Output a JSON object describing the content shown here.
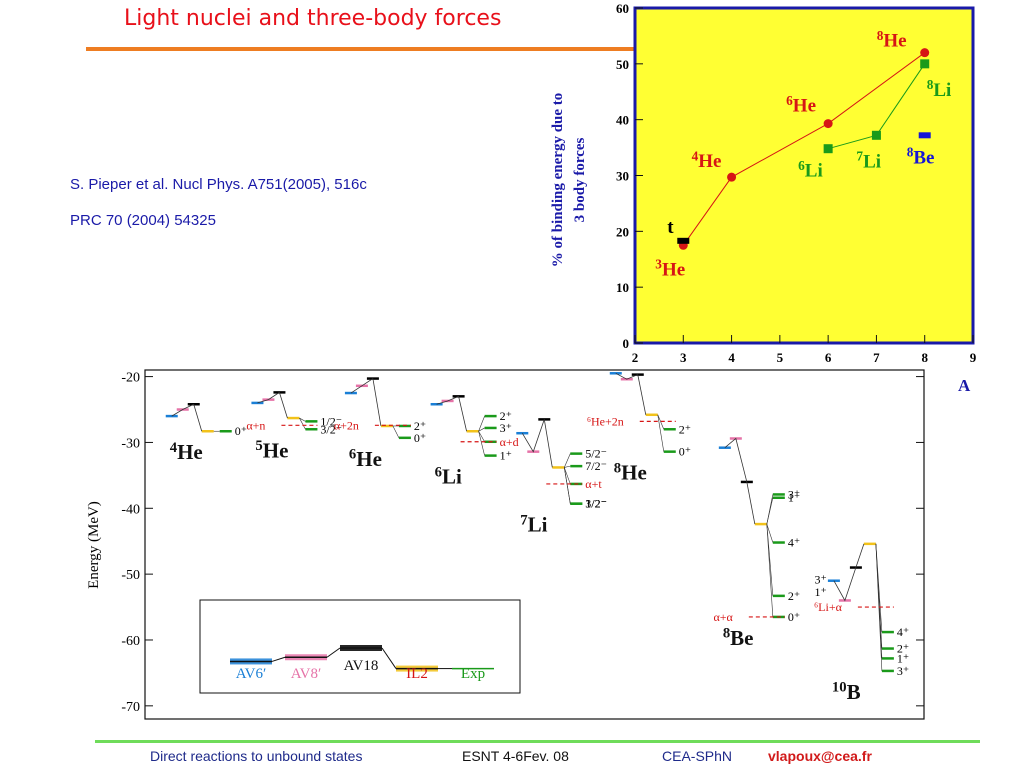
{
  "title": "Light nuclei and three-body forces",
  "references": [
    "S. Pieper et al. Nucl Phys. A751(2005), 516c",
    "PRC 70 (2004) 54325"
  ],
  "footer": {
    "talk": "Direct reactions to unbound states",
    "event": "ESNT 4-6Fev. 08",
    "lab": "CEA-SPhN",
    "email": "vlapoux@cea.fr"
  },
  "colors": {
    "title": "#e8101a",
    "rule": "#ee7d22",
    "plot_bg": "#ffff33",
    "frame": "#1a1aa8",
    "he": "#d61515",
    "li": "#1a9a1a",
    "be": "#1515d6",
    "t": "#000000"
  },
  "chart_data": [
    {
      "type": "scatter",
      "ylabel_lines": [
        "% of binding energy due to",
        "3 body forces"
      ],
      "xlabel": "A",
      "xlim": [
        2,
        9
      ],
      "ylim": [
        0,
        60
      ],
      "xticks": [
        "2",
        "3",
        "4",
        "5",
        "6",
        "7",
        "8",
        "9"
      ],
      "yticks": [
        "0",
        "10",
        "20",
        "30",
        "40",
        "50",
        "60"
      ],
      "series": [
        {
          "name": "He",
          "color": "#d61515",
          "marker": "circle",
          "points": [
            {
              "x": 3,
              "y": 17.5,
              "label": "He",
              "sup": "3"
            },
            {
              "x": 4,
              "y": 29.7,
              "label": "He",
              "sup": "4"
            },
            {
              "x": 6,
              "y": 39.3,
              "label": "He",
              "sup": "6"
            },
            {
              "x": 8,
              "y": 52,
              "label": "He",
              "sup": "8"
            }
          ]
        },
        {
          "name": "Li",
          "color": "#1a9a1a",
          "marker": "square",
          "points": [
            {
              "x": 6,
              "y": 34.8,
              "label": "Li",
              "sup": "6"
            },
            {
              "x": 7,
              "y": 37.2,
              "label": "Li",
              "sup": "7"
            },
            {
              "x": 8,
              "y": 50,
              "label": "Li",
              "sup": "8"
            }
          ]
        },
        {
          "name": "t",
          "color": "#000000",
          "marker": "bar",
          "points": [
            {
              "x": 3,
              "y": 18.3,
              "label": "t",
              "sup": ""
            }
          ]
        },
        {
          "name": "Be",
          "color": "#1515d6",
          "marker": "bar",
          "points": [
            {
              "x": 8,
              "y": 37.2,
              "label": "Be",
              "sup": "8"
            }
          ]
        }
      ]
    },
    {
      "type": "level-scheme",
      "ylabel": "Energy (MeV)",
      "ylim": [
        -72,
        -19
      ],
      "yticks": [
        "-20",
        "-30",
        "-40",
        "-50",
        "-60",
        "-70"
      ],
      "legend": [
        {
          "label": "AV6′",
          "color": "#1a7fd6",
          "energy": -60.4
        },
        {
          "label": "AV8′",
          "color": "#e673a8",
          "energy": -59.4
        },
        {
          "label": "AV18",
          "color": "#000000",
          "energy": -57.2
        },
        {
          "label": "IL2",
          "color": "#f2c21a",
          "energy": -62.1
        },
        {
          "label": "Exp",
          "color": "#1a9a1a",
          "energy": -62.1
        }
      ],
      "nuclei": [
        {
          "name": "He",
          "sup": "4",
          "x": 0.06,
          "levels": [
            -26,
            -25,
            -24.2,
            -28.3
          ],
          "exp": [
            {
              "e": -28.3,
              "jp": "0⁺"
            }
          ],
          "thresholds": []
        },
        {
          "name": "He",
          "sup": "5",
          "x": 0.17,
          "levels": [
            -24,
            -23.5,
            -22.4,
            -26.3
          ],
          "exp": [
            {
              "e": -26.8,
              "jp": "1/2⁻"
            },
            {
              "e": -28,
              "jp": "3/2⁻"
            }
          ],
          "thresholds": [
            {
              "e": -27.4,
              "label": "α+n"
            }
          ]
        },
        {
          "name": "He",
          "sup": "6",
          "x": 0.29,
          "levels": [
            -22.5,
            -21.4,
            -20.3,
            -27.5
          ],
          "exp": [
            {
              "e": -27.5,
              "jp": "2⁺"
            },
            {
              "e": -29.3,
              "jp": "0⁺"
            }
          ],
          "thresholds": [
            {
              "e": -27.4,
              "label": "α+2n"
            }
          ]
        },
        {
          "name": "Li",
          "sup": "6",
          "x": 0.4,
          "levels": [
            -24.2,
            -23.7,
            -23,
            -28.3
          ],
          "exp": [
            {
              "e": -26,
              "jp": "2⁺"
            },
            {
              "e": -27.8,
              "jp": "3⁺"
            },
            {
              "e": -29.9,
              "jp": "α+d"
            },
            {
              "e": -32,
              "jp": "1⁺"
            }
          ],
          "thresholds": [
            {
              "e": -29.9,
              "label": "α+d"
            }
          ]
        },
        {
          "name": "Li",
          "sup": "7",
          "x": 0.51,
          "levels": [
            -28.6,
            -31.4,
            -26.5,
            -33.8
          ],
          "exp": [
            {
              "e": -31.7,
              "jp": "5/2⁻"
            },
            {
              "e": -33.6,
              "jp": "7/2⁻"
            },
            {
              "e": -36.3,
              "jp": "α+t"
            },
            {
              "e": -39.3,
              "jp": "1/2⁻"
            },
            {
              "e": -39.3,
              "jp": "3/2⁻"
            }
          ],
          "thresholds": [
            {
              "e": -36.3,
              "label": "α+t"
            }
          ]
        },
        {
          "name": "He",
          "sup": "8",
          "x": 0.63,
          "levels": [
            -19.5,
            -20.4,
            -19.7,
            -25.8
          ],
          "exp": [
            {
              "e": -28,
              "jp": "2⁺"
            },
            {
              "e": -31.4,
              "jp": "0⁺"
            }
          ],
          "thresholds": [
            {
              "e": -26.8,
              "label": "⁶He+2n"
            }
          ]
        },
        {
          "name": "Be",
          "sup": "8",
          "x": 0.77,
          "levels": [
            -30.8,
            -29.4,
            -36,
            -42.4
          ],
          "exp": [
            {
              "e": -37.9,
              "jp": "3⁺"
            },
            {
              "e": -38.4,
              "jp": "1⁺"
            },
            {
              "e": -45.2,
              "jp": "4⁺"
            },
            {
              "e": -53.3,
              "jp": "2⁺"
            },
            {
              "e": -56.5,
              "jp": "0⁺"
            }
          ],
          "thresholds": [
            {
              "e": -56.5,
              "label": "α+α"
            }
          ]
        },
        {
          "name": "B",
          "sup": "10",
          "x": 0.91,
          "levels": [
            -51,
            -54,
            -49,
            -45.4
          ],
          "exp": [
            {
              "e": -58.8,
              "jp": "4⁺"
            },
            {
              "e": -61.3,
              "jp": "2⁺"
            },
            {
              "e": -62.8,
              "jp": "1⁺"
            },
            {
              "e": -64.7,
              "jp": "3⁺"
            }
          ],
          "thresholds": [
            {
              "e": -55,
              "label": "⁶Li+α"
            }
          ],
          "left_labels": [
            {
              "e": -50.8,
              "jp": "3⁺"
            },
            {
              "e": -52.7,
              "jp": "1⁺"
            }
          ]
        }
      ]
    }
  ]
}
